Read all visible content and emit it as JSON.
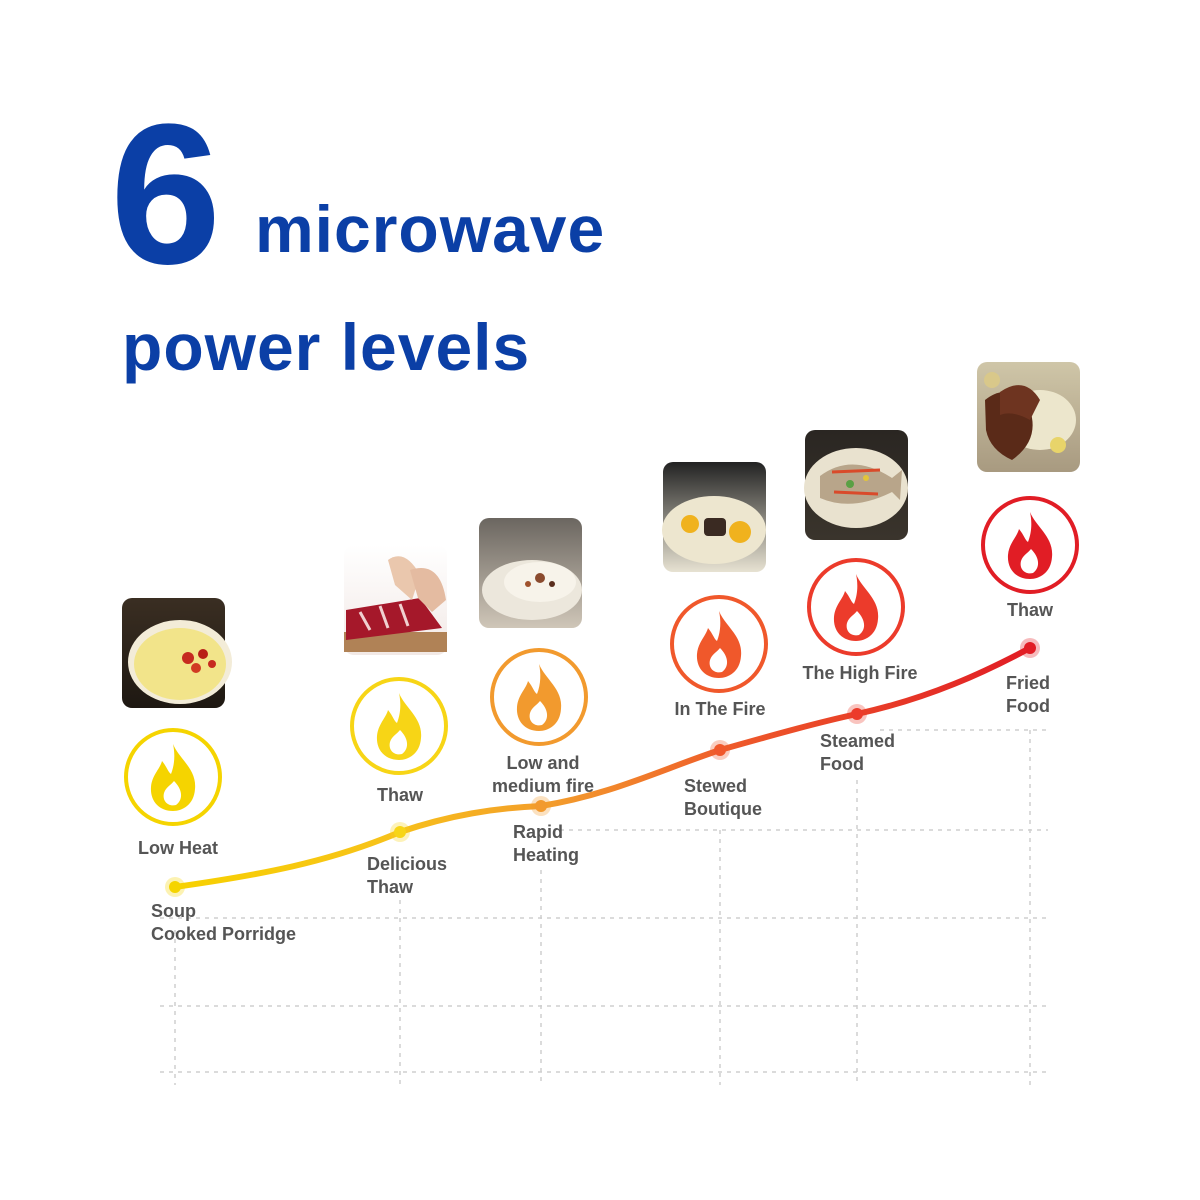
{
  "header": {
    "number": "6",
    "line1": "microwave",
    "line2": "power levels",
    "color": "#0b3fa6"
  },
  "levels": [
    {
      "power": "Low Heat",
      "food": "Soup\nCooked Porridge",
      "color": "#f5d400",
      "icon": "flame-icon",
      "photo": "soup-photo"
    },
    {
      "power": "Thaw",
      "food": "Delicious\nThaw",
      "color": "#f7d516",
      "icon": "flame-icon",
      "photo": "meat-cutting-photo"
    },
    {
      "power": "Low and\nmedium fire",
      "food": "Rapid\nHeating",
      "color": "#f29a2e",
      "icon": "flame-icon",
      "photo": "dessert-bowl-photo"
    },
    {
      "power": "In The Fire",
      "food": "Stewed\nBoutique",
      "color": "#f0582b",
      "icon": "flame-icon",
      "photo": "stew-photo"
    },
    {
      "power": "The High Fire",
      "food": "Steamed\nFood",
      "color": "#ec3b2b",
      "icon": "flame-icon",
      "photo": "steamed-fish-photo"
    },
    {
      "power": "Thaw",
      "food": "Fried\nFood",
      "color": "#e11d25",
      "icon": "flame-icon",
      "photo": "fried-food-photo"
    }
  ]
}
